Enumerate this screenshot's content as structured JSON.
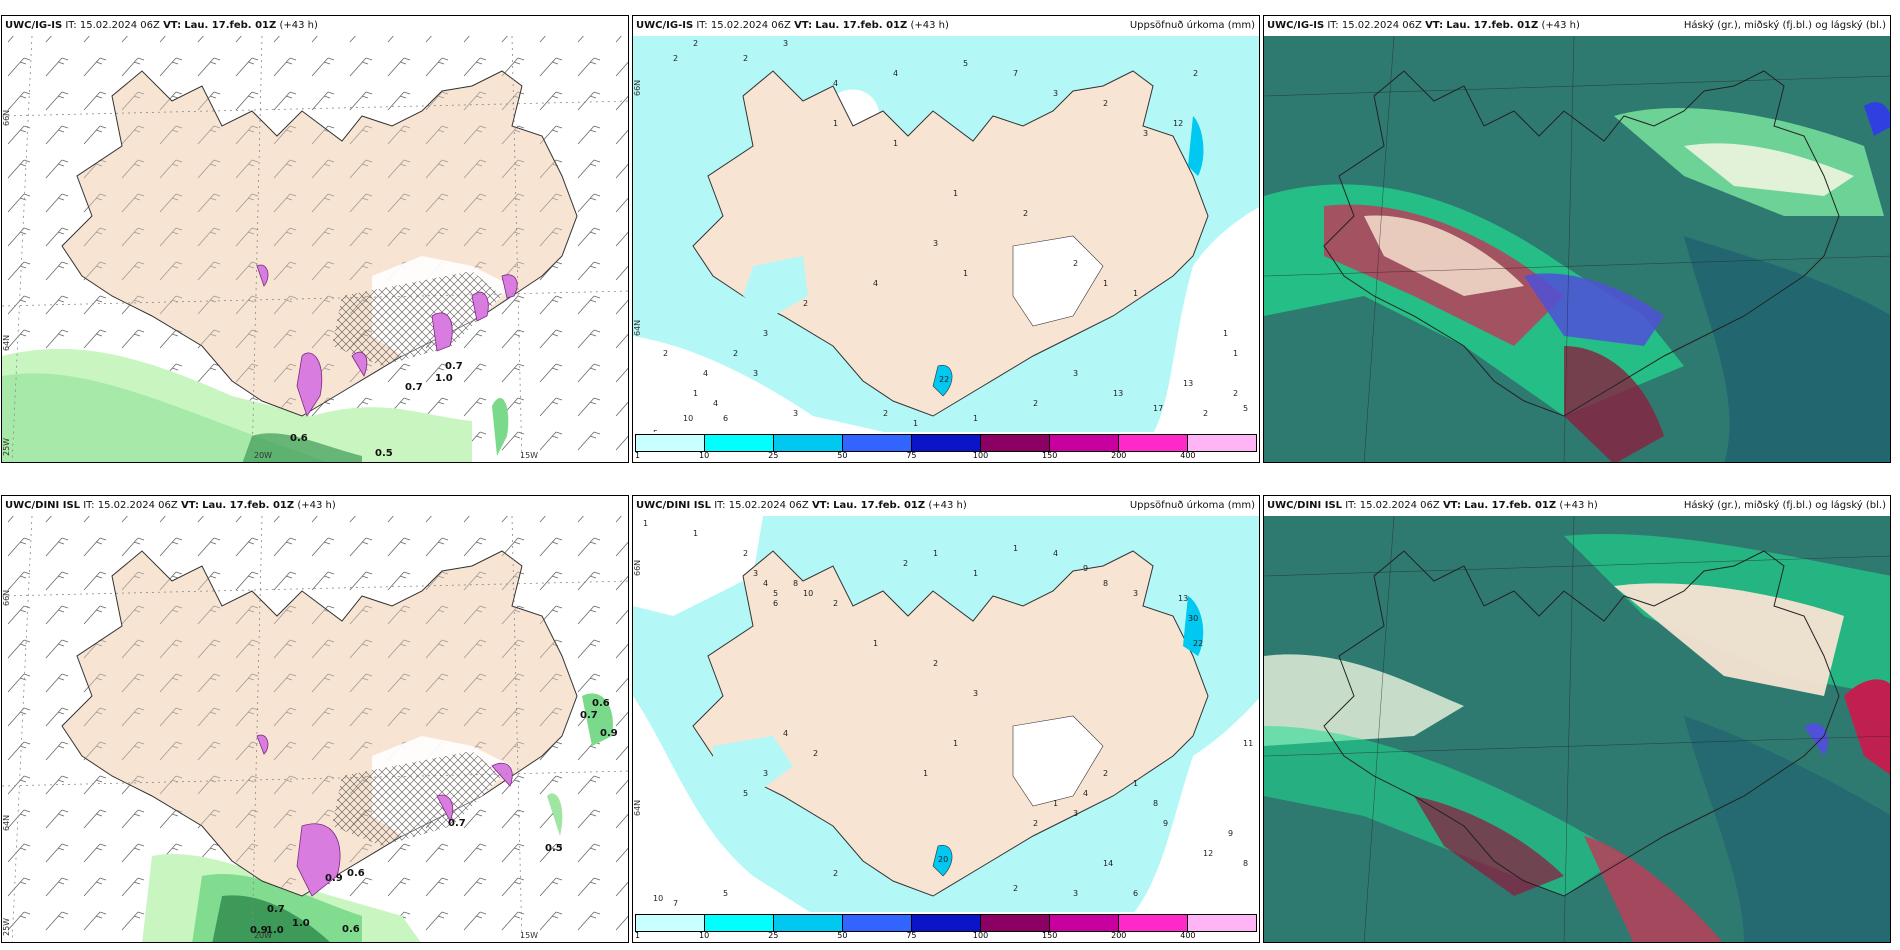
{
  "panels": {
    "p1": {
      "model": "UWC/IG-IS",
      "it_label": "IT:",
      "it": "15.02.2024 06Z",
      "vt_label": "VT:",
      "vt": "Lau. 17.feb. 01Z",
      "lead": "(+43 h)",
      "right": ""
    },
    "p2": {
      "model": "UWC/IG-IS",
      "it_label": "IT:",
      "it": "15.02.2024 06Z",
      "vt_label": "VT:",
      "vt": "Lau. 17.feb. 01Z",
      "lead": "(+43 h)",
      "right": "Uppsöfnuð úrkoma (mm)"
    },
    "p3": {
      "model": "UWC/IG-IS",
      "it_label": "IT:",
      "it": "15.02.2024 06Z",
      "vt_label": "VT:",
      "vt": "Lau. 17.feb. 01Z",
      "lead": "(+43 h)",
      "right": "Háský (gr.), miðský (fj.bl.) og lágský (bl.)"
    },
    "p4": {
      "model": "UWC/DINI ISL",
      "it_label": "IT:",
      "it": "15.02.2024 06Z",
      "vt_label": "VT:",
      "vt": "Lau. 17.feb. 01Z",
      "lead": "(+43 h)",
      "right": ""
    },
    "p5": {
      "model": "UWC/DINI ISL",
      "it_label": "IT:",
      "it": "15.02.2024 06Z",
      "vt_label": "VT:",
      "vt": "Lau. 17.feb. 01Z",
      "lead": "(+43 h)",
      "right": "Uppsöfnuð úrkoma (mm)"
    },
    "p6": {
      "model": "UWC/DINI ISL",
      "it_label": "IT:",
      "it": "15.02.2024 06Z",
      "vt_label": "VT:",
      "vt": "Lau. 17.feb. 01Z",
      "lead": "(+43 h)",
      "right": "Háský (gr.), miðský (fj.bl.) og lágský (bl.)"
    }
  },
  "grid_labels": {
    "lat_66": "66N",
    "lat_64": "64N",
    "lon_25": "25W",
    "lon_20": "20W",
    "lon_15": "15W"
  },
  "legend": {
    "ticks": [
      "1",
      "10",
      "25",
      "50",
      "75",
      "100",
      "150",
      "200",
      "400"
    ],
    "colors": [
      "#c8ffff",
      "#00ffff",
      "#00c8f0",
      "#3264ff",
      "#0a14c8",
      "#8c0064",
      "#c800a0",
      "#ff28c8",
      "#ffb4f5"
    ]
  },
  "wind_values_p1": [
    "0.7",
    "1.0",
    "0.7",
    "0.6",
    "0.5"
  ],
  "wind_values_p4": [
    "0.6",
    "0.7",
    "0.9",
    "0.7",
    "0.5",
    "0.9",
    "0.6",
    "0.7",
    "1.0",
    "0.6",
    "0.9",
    "1.0"
  ],
  "precip_values_p2": [
    "2",
    "2",
    "2",
    "3",
    "4",
    "4",
    "5",
    "7",
    "3",
    "2",
    "1",
    "1",
    "1",
    "2",
    "3",
    "1",
    "4",
    "2",
    "3",
    "2",
    "2",
    "1",
    "3",
    "4",
    "5",
    "2",
    "1",
    "1",
    "13",
    "12",
    "3",
    "2",
    "1",
    "1",
    "2",
    "2",
    "3",
    "2",
    "5",
    "17",
    "13",
    "10",
    "6",
    "4",
    "3",
    "22",
    "2",
    "1",
    "1"
  ],
  "precip_values_p5": [
    "1",
    "1",
    "2",
    "3",
    "4",
    "5",
    "6",
    "8",
    "10",
    "2",
    "2",
    "1",
    "1",
    "1",
    "4",
    "9",
    "8",
    "3",
    "1",
    "2",
    "3",
    "4",
    "2",
    "3",
    "5",
    "1",
    "1",
    "13",
    "30",
    "22",
    "2",
    "1",
    "3",
    "4",
    "2",
    "1",
    "8",
    "9",
    "14",
    "20",
    "12",
    "9",
    "8",
    "6",
    "3",
    "2",
    "10",
    "7",
    "5",
    "11",
    "2"
  ],
  "colors": {
    "land": "#f7e4d2",
    "sea_light_green": "#c8f5c0",
    "sea_mid_green": "#7ad98a",
    "sea_dark_green": "#3d9a58",
    "precip_cyan": "#b3f7f7",
    "snow_purple": "#d87ce0",
    "cloud_teal": "#2f7a70",
    "cloud_green": "#1fdc90",
    "cloud_red": "#b8405a",
    "cloud_blue": "#5050d8"
  }
}
